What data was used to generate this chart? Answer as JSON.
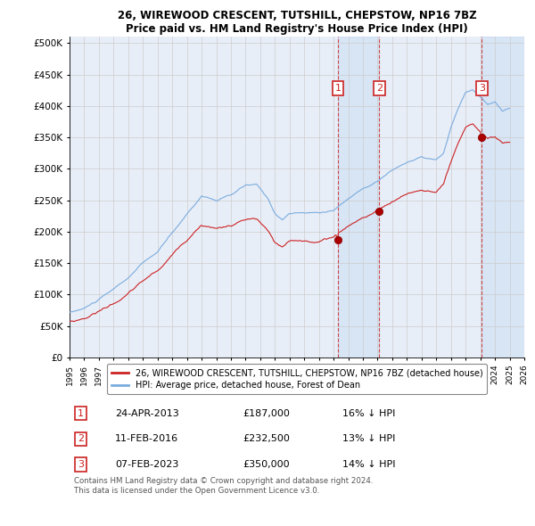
{
  "title1": "26, WIREWOOD CRESCENT, TUTSHILL, CHEPSTOW, NP16 7BZ",
  "title2": "Price paid vs. HM Land Registry's House Price Index (HPI)",
  "ytick_labels": [
    "£0",
    "£50K",
    "£100K",
    "£150K",
    "£200K",
    "£250K",
    "£300K",
    "£350K",
    "£400K",
    "£450K",
    "£500K"
  ],
  "yticks": [
    0,
    50000,
    100000,
    150000,
    200000,
    250000,
    300000,
    350000,
    400000,
    450000,
    500000
  ],
  "xmin": 1995.0,
  "xmax": 2026.0,
  "ymin": 0,
  "ymax": 510000,
  "hpi_color": "#7aacde",
  "price_color": "#cc2222",
  "grid_color": "#cccccc",
  "background_color": "#e8eef8",
  "legend_label_price": "26, WIREWOOD CRESCENT, TUTSHILL, CHEPSTOW, NP16 7BZ (detached house)",
  "legend_label_hpi": "HPI: Average price, detached house, Forest of Dean",
  "sale1_x": 2013.29,
  "sale1_y": 187000,
  "sale2_x": 2016.12,
  "sale2_y": 232500,
  "sale3_x": 2023.1,
  "sale3_y": 350000,
  "shade1_x1": 2013.29,
  "shade1_x2": 2016.12,
  "shade2_x1": 2023.1,
  "shade2_x2": 2026.0,
  "table_rows": [
    [
      "1",
      "24-APR-2013",
      "£187,000",
      "16% ↓ HPI"
    ],
    [
      "2",
      "11-FEB-2016",
      "£232,500",
      "13% ↓ HPI"
    ],
    [
      "3",
      "07-FEB-2023",
      "£350,000",
      "14% ↓ HPI"
    ]
  ],
  "footer": "Contains HM Land Registry data © Crown copyright and database right 2024.\nThis data is licensed under the Open Government Licence v3.0."
}
